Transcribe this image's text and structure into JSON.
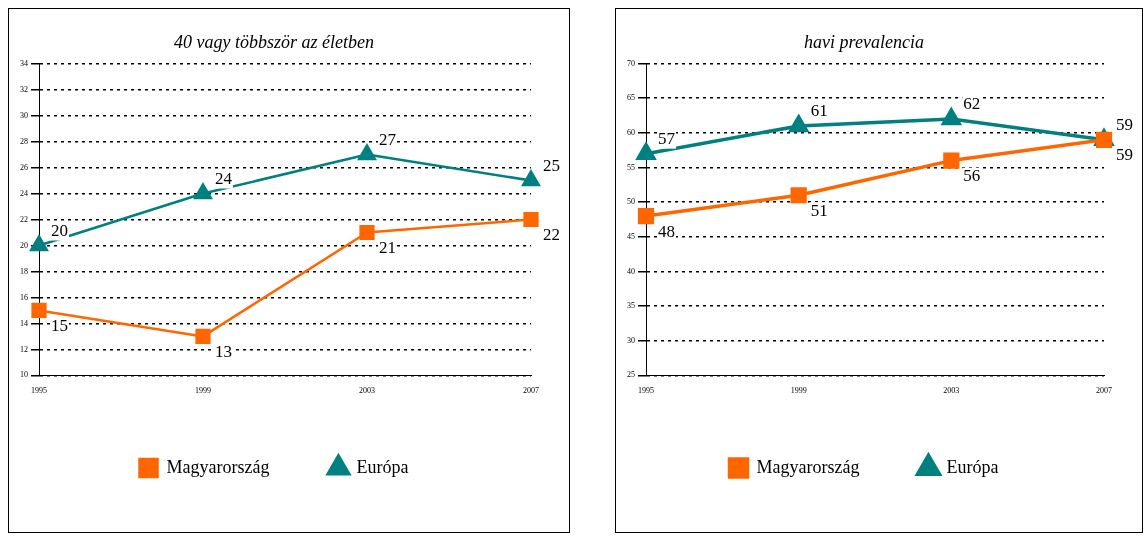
{
  "chart_data": [
    {
      "type": "line",
      "title": "40 vagy többször az életben",
      "categories": [
        "1995",
        "1999",
        "2003",
        "2007"
      ],
      "ylim": [
        10,
        34
      ],
      "yticks": [
        10,
        12,
        14,
        16,
        18,
        20,
        22,
        24,
        26,
        28,
        30,
        32,
        34
      ],
      "grid": "y",
      "legend": "bottom",
      "data_labels": true,
      "series": [
        {
          "name": "Magyarország",
          "color": "#ff6600",
          "marker": "square",
          "values": [
            15,
            13,
            21,
            22
          ]
        },
        {
          "name": "Európa",
          "color": "#008080",
          "marker": "triangle",
          "values": [
            20,
            24,
            27,
            25
          ]
        }
      ]
    },
    {
      "type": "line",
      "title": "havi prevalencia",
      "categories": [
        "1995",
        "1999",
        "2003",
        "2007"
      ],
      "ylim": [
        25,
        70
      ],
      "yticks": [
        25,
        30,
        35,
        40,
        45,
        50,
        55,
        60,
        65,
        70
      ],
      "grid": "y",
      "legend": "bottom",
      "data_labels": true,
      "series": [
        {
          "name": "Magyarország",
          "color": "#ff6600",
          "marker": "square",
          "values": [
            48,
            51,
            56,
            59
          ]
        },
        {
          "name": "Európa",
          "color": "#008080",
          "marker": "triangle",
          "values": [
            57,
            61,
            62,
            59
          ]
        }
      ]
    }
  ]
}
